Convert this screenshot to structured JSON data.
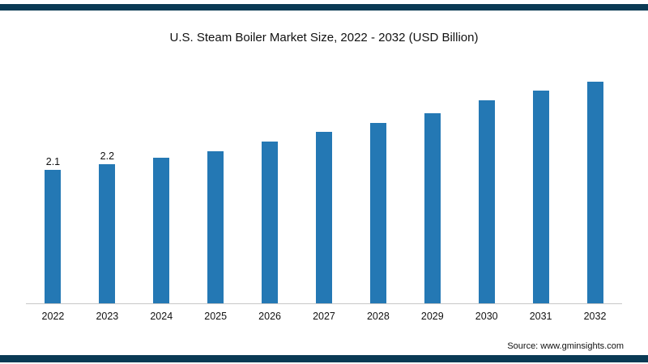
{
  "title": "U.S. Steam Boiler Market Size, 2022 - 2032 (USD Billion)",
  "source": "Source: www.gminsights.com",
  "colors": {
    "bar": "#2478b4",
    "border": "#0a3a54",
    "axis": "#c8c8c8"
  },
  "chart_data": {
    "type": "bar",
    "title": "U.S. Steam Boiler Market Size, 2022 - 2032 (USD Billion)",
    "categories": [
      "2022",
      "2023",
      "2024",
      "2025",
      "2026",
      "2027",
      "2028",
      "2029",
      "2030",
      "2031",
      "2032"
    ],
    "values": [
      2.1,
      2.2,
      2.3,
      2.4,
      2.55,
      2.7,
      2.85,
      3.0,
      3.2,
      3.35,
      3.5
    ],
    "value_labels": [
      "2.1",
      "2.2",
      "",
      "",
      "",
      "",
      "",
      "",
      "",
      "",
      ""
    ],
    "xlabel": "",
    "ylabel": "",
    "ylim": [
      0,
      3.7
    ],
    "grid": false,
    "legend": "none",
    "source": "Source: www.gminsights.com"
  }
}
